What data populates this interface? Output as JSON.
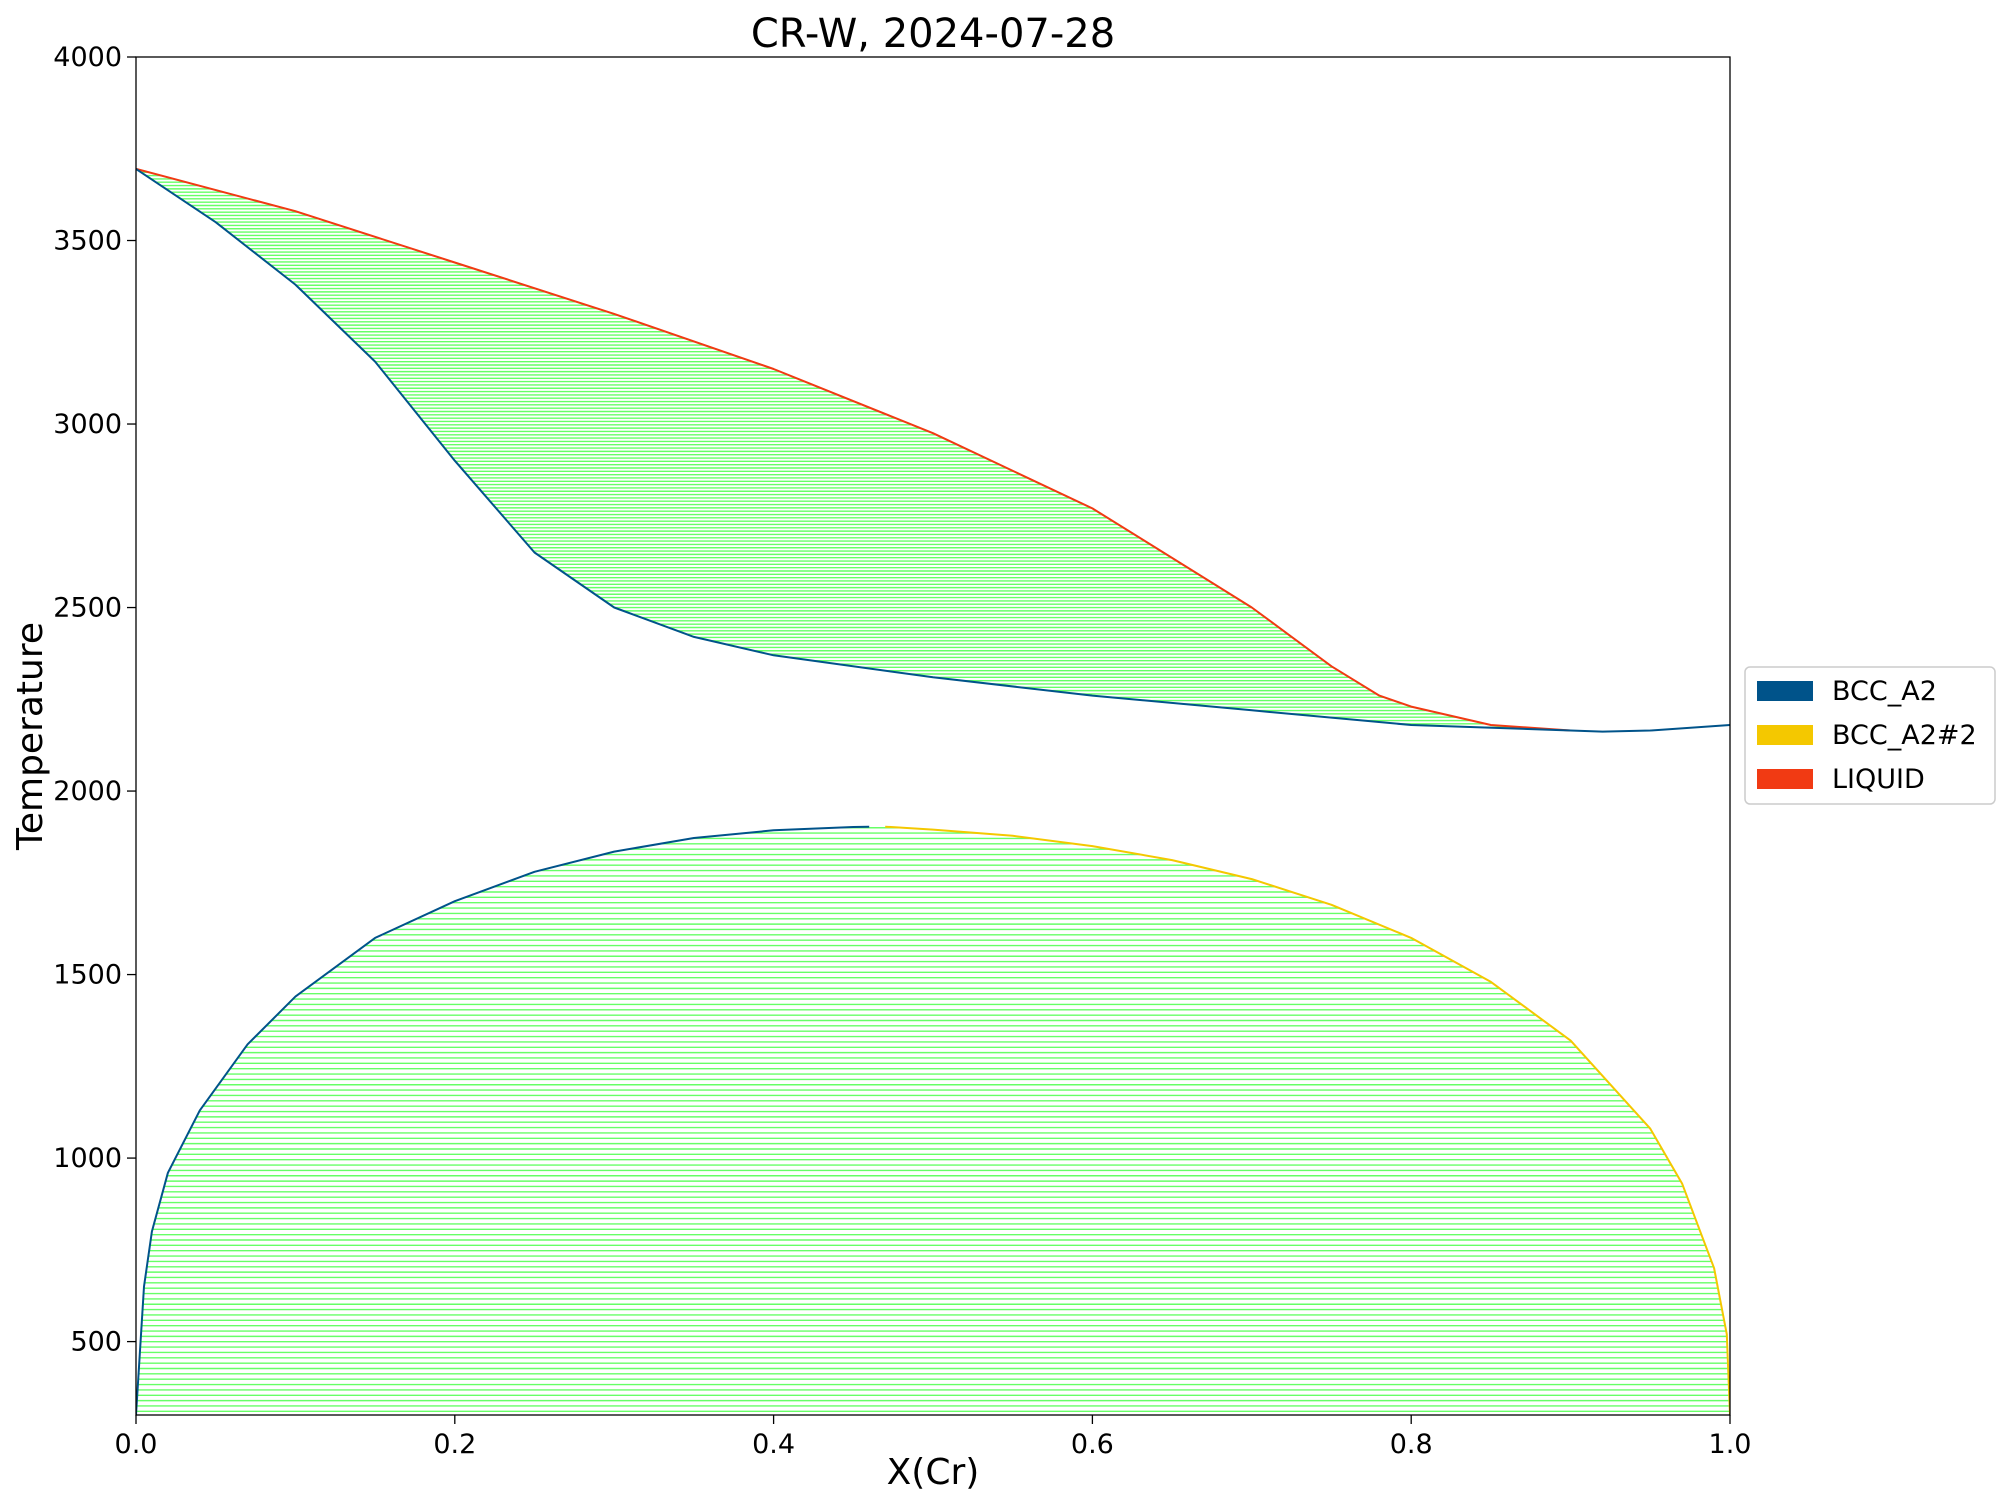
{
  "chart_data": {
    "type": "line",
    "title": "CR-W, 2024-07-28",
    "xlabel": "X(Cr)",
    "ylabel": "Temperature",
    "xlim": [
      0.0,
      1.0
    ],
    "ylim": [
      300,
      4000
    ],
    "xticks": [
      "0.0",
      "0.2",
      "0.4",
      "0.6",
      "0.8",
      "1.0"
    ],
    "yticks": [
      "500",
      "1000",
      "1500",
      "2000",
      "2500",
      "3000",
      "3500",
      "4000"
    ],
    "grid": false,
    "legend_position": "right",
    "colors": {
      "BCC_A2": "#00538a",
      "BCC_A2#2": "#f4c800",
      "LIQUID": "#f13a13",
      "tieline": "#33ff33"
    },
    "legend": [
      {
        "label": "BCC_A2",
        "color": "#00538a"
      },
      {
        "label": "BCC_A2#2",
        "color": "#f4c800"
      },
      {
        "label": "LIQUID",
        "color": "#f13a13"
      }
    ],
    "series": [
      {
        "name": "LIQUID",
        "color": "#f13a13",
        "x": [
          0.0,
          0.1,
          0.2,
          0.3,
          0.4,
          0.5,
          0.6,
          0.7,
          0.75,
          0.78,
          0.8,
          0.85,
          0.9
        ],
        "y": [
          3695,
          3580,
          3440,
          3300,
          3150,
          2975,
          2770,
          2500,
          2340,
          2260,
          2230,
          2180,
          2165
        ]
      },
      {
        "name": "BCC_A2",
        "color": "#00538a",
        "x": [
          0.0,
          0.05,
          0.1,
          0.15,
          0.2,
          0.25,
          0.3,
          0.35,
          0.4,
          0.5,
          0.6,
          0.7,
          0.8,
          0.9,
          0.92,
          0.95,
          1.0
        ],
        "y": [
          3695,
          3550,
          3380,
          3170,
          2900,
          2650,
          2500,
          2420,
          2370,
          2310,
          2260,
          2220,
          2180,
          2165,
          2162,
          2165,
          2180
        ]
      },
      {
        "name": "BCC_A2 miscibility",
        "color": "#00538a",
        "x": [
          0.0,
          0.005,
          0.01,
          0.02,
          0.04,
          0.07,
          0.1,
          0.15,
          0.2,
          0.25,
          0.3,
          0.35,
          0.4,
          0.45,
          0.46
        ],
        "y": [
          300,
          650,
          800,
          960,
          1130,
          1310,
          1440,
          1600,
          1700,
          1780,
          1835,
          1872,
          1893,
          1902,
          1903
        ]
      },
      {
        "name": "BCC_A2#2 miscibility",
        "color": "#f4c800",
        "x": [
          0.47,
          0.5,
          0.55,
          0.6,
          0.65,
          0.7,
          0.75,
          0.8,
          0.85,
          0.9,
          0.95,
          0.97,
          0.99,
          0.998,
          1.0
        ],
        "y": [
          1903,
          1895,
          1878,
          1850,
          1812,
          1760,
          1690,
          1600,
          1480,
          1320,
          1080,
          930,
          700,
          520,
          300
        ]
      }
    ],
    "tielines": [
      {
        "range": [
          2165,
          3695
        ],
        "count": 170
      },
      {
        "range": [
          310,
          1900
        ],
        "count": 110
      }
    ]
  }
}
